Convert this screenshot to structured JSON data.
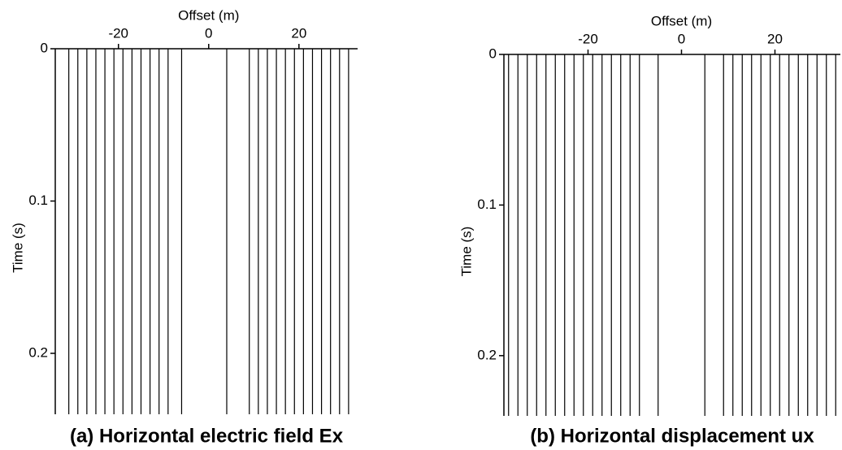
{
  "chart_data": [
    {
      "type": "seismic",
      "title": "(a) Horizontal electric field Ex",
      "x_label": "Offset (m)",
      "y_label": "Time (s)",
      "xlim": [
        -34,
        33
      ],
      "xticks": [
        -20,
        0,
        20
      ],
      "ylim": [
        0,
        0.24
      ],
      "yticks": [
        0,
        0.1,
        0.2
      ],
      "y_inverted": true,
      "color": "#000000",
      "traces": [
        -31,
        -29,
        -27,
        -25,
        -23,
        -21,
        -19,
        -17,
        -15,
        -13,
        -11,
        -9,
        -6,
        4,
        9,
        11,
        13,
        15,
        17,
        19,
        21,
        23,
        25,
        27,
        29,
        31
      ]
    },
    {
      "type": "seismic",
      "title": "(b) Horizontal displacement ux",
      "x_label": "Offset (m)",
      "y_label": "Time (s)",
      "xlim": [
        -38,
        34
      ],
      "xticks": [
        -20,
        0,
        20
      ],
      "ylim": [
        0,
        0.24
      ],
      "yticks": [
        0,
        0.1,
        0.2
      ],
      "y_inverted": true,
      "color": "#000000",
      "traces": [
        -37,
        -35,
        -33,
        -31,
        -29,
        -27,
        -25,
        -23,
        -21,
        -19,
        -17,
        -15,
        -13,
        -11,
        -9,
        -5,
        5,
        9,
        11,
        13,
        15,
        17,
        19,
        21,
        23,
        25,
        27,
        29,
        31,
        33
      ]
    }
  ]
}
